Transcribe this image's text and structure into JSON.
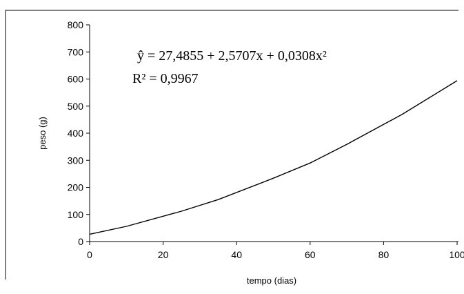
{
  "chart_data": {
    "type": "line",
    "title": "",
    "xlabel": "tempo (dias)",
    "ylabel": "peso (g)",
    "xlim": [
      0,
      100
    ],
    "ylim": [
      0,
      800
    ],
    "x_ticks": [
      "0",
      "20",
      "40",
      "60",
      "80",
      "100"
    ],
    "y_ticks": [
      "0",
      "100",
      "200",
      "300",
      "400",
      "500",
      "600",
      "700",
      "800"
    ],
    "grid": false,
    "legend": "none",
    "series": [
      {
        "color": "#000000",
        "x": [
          0,
          10,
          25,
          35,
          50,
          60,
          70,
          85,
          100
        ],
        "y": [
          27,
          56,
          112,
          155,
          234,
          290,
          359,
          469,
          594
        ]
      }
    ],
    "annotations": {
      "equation": "ŷ = 27,4855 + 2,5707x + 0,0308x²",
      "r_squared": "R² = 0,9967"
    }
  }
}
